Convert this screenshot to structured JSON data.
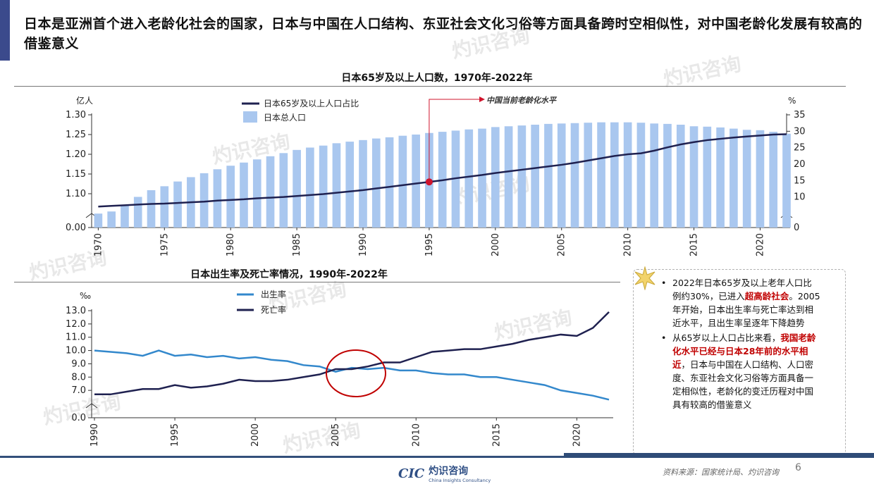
{
  "title": "日本是亚洲首个进入老龄化社会的国家，日本与中国在人口结构、东亚社会文化习俗等方面具备跨时空相似性，对中国老龄化发展有较高的借鉴意义",
  "chart1": {
    "title": "日本65岁及以上人口数，1970年-2022年",
    "left_unit": "亿人",
    "right_unit": "%",
    "legend_line": "日本65岁及以上人口占比",
    "legend_bar": "日本总人口",
    "annotation": "中国当前老龄化水平"
  },
  "chart2": {
    "title": "日本出生率及死亡率情况，1990年-2022年",
    "unit": "‰",
    "legend_birth": "出生率",
    "legend_death": "死亡率"
  },
  "notes": [
    {
      "pre": "2022年日本65岁及以上老年人口比例约30%，已进入",
      "hl": "超高龄社会",
      "post": "。2005年开始，日本出生率与死亡率达到相近水平，且出生率呈逐年下降趋势"
    },
    {
      "pre": "从65岁以上人口占比来看，",
      "hl": "我国老龄化水平已经与日本28年前的水平相近",
      "post": "，日本与中国在人口结构、人口密度、东亚社会文化习俗等方面具备一定相似性，老龄化的变迁历程对中国具有较高的借鉴意义"
    }
  ],
  "footer": {
    "source": "资料来源：国家统计局、灼识咨询",
    "page": "6",
    "logo_cic": "CIC",
    "logo_cn": "灼识咨询",
    "logo_en": "China Insights Consultancy"
  },
  "watermark": {
    "cn": "灼识咨询",
    "en": "China Insights Consultancy",
    "cic": "CIC"
  },
  "colors": {
    "bar": "#a9c7ef",
    "line_dark": "#1f2150",
    "line_blue": "#3388cc",
    "marker": "#d0142c",
    "accent": "#3b4a8c"
  },
  "chart_data": [
    {
      "type": "bar",
      "title": "日本65岁及以上人口数，1970年-2022年",
      "x": [
        1970,
        1971,
        1972,
        1973,
        1974,
        1975,
        1976,
        1977,
        1978,
        1979,
        1980,
        1981,
        1982,
        1983,
        1984,
        1985,
        1986,
        1987,
        1988,
        1989,
        1990,
        1991,
        1992,
        1993,
        1994,
        1995,
        1996,
        1997,
        1998,
        1999,
        2000,
        2001,
        2002,
        2003,
        2004,
        2005,
        2006,
        2007,
        2008,
        2009,
        2010,
        2011,
        2012,
        2013,
        2014,
        2015,
        2016,
        2017,
        2018,
        2019,
        2020,
        2021,
        2022
      ],
      "xticks": [
        1970,
        1975,
        1980,
        1985,
        1990,
        1995,
        2000,
        2005,
        2010,
        2015,
        2020
      ],
      "series": [
        {
          "name": "日本总人口",
          "axis": "left",
          "values": [
            1.04,
            1.055,
            1.071,
            1.092,
            1.109,
            1.119,
            1.131,
            1.142,
            1.152,
            1.162,
            1.171,
            1.179,
            1.187,
            1.195,
            1.203,
            1.211,
            1.217,
            1.222,
            1.228,
            1.232,
            1.236,
            1.24,
            1.243,
            1.247,
            1.25,
            1.254,
            1.257,
            1.26,
            1.263,
            1.265,
            1.269,
            1.271,
            1.273,
            1.275,
            1.277,
            1.278,
            1.279,
            1.28,
            1.281,
            1.281,
            1.281,
            1.28,
            1.278,
            1.277,
            1.275,
            1.271,
            1.27,
            1.268,
            1.265,
            1.262,
            1.261,
            1.257,
            1.252
          ]
        },
        {
          "name": "日本65岁及以上人口占比",
          "axis": "right",
          "values": [
            7.1,
            7.3,
            7.5,
            7.7,
            7.9,
            8.0,
            8.2,
            8.4,
            8.6,
            8.9,
            9.1,
            9.3,
            9.6,
            9.8,
            10.0,
            10.3,
            10.6,
            10.9,
            11.3,
            11.7,
            12.1,
            12.6,
            13.1,
            13.6,
            14.1,
            14.6,
            15.1,
            15.7,
            16.2,
            16.7,
            17.3,
            17.8,
            18.3,
            18.8,
            19.3,
            19.8,
            20.4,
            21.1,
            21.8,
            22.5,
            23.0,
            23.3,
            24.1,
            25.1,
            26.0,
            26.7,
            27.3,
            27.7,
            28.1,
            28.4,
            28.7,
            29.0,
            29.1
          ]
        }
      ],
      "ylim_left": [
        0.0,
        1.3
      ],
      "yticks_left": [
        0.0,
        1.1,
        1.15,
        1.2,
        1.25,
        1.3
      ],
      "ylim_right": [
        0,
        35
      ],
      "yticks_right": [
        0,
        10,
        15,
        20,
        25,
        30,
        35
      ],
      "marker": {
        "x": 1995,
        "label": "中国当前老龄化水平"
      },
      "legend": "top-left"
    },
    {
      "type": "line",
      "title": "日本出生率及死亡率情况，1990年-2022年",
      "x": [
        1990,
        1991,
        1992,
        1993,
        1994,
        1995,
        1996,
        1997,
        1998,
        1999,
        2000,
        2001,
        2002,
        2003,
        2004,
        2005,
        2006,
        2007,
        2008,
        2009,
        2010,
        2011,
        2012,
        2013,
        2014,
        2015,
        2016,
        2017,
        2018,
        2019,
        2020,
        2021,
        2022
      ],
      "xticks": [
        1990,
        1995,
        2000,
        2005,
        2010,
        2015,
        2020
      ],
      "series": [
        {
          "name": "出生率",
          "values": [
            10.0,
            9.9,
            9.8,
            9.6,
            10.0,
            9.6,
            9.7,
            9.5,
            9.6,
            9.4,
            9.5,
            9.3,
            9.2,
            8.9,
            8.8,
            8.4,
            8.7,
            8.6,
            8.7,
            8.5,
            8.5,
            8.3,
            8.2,
            8.2,
            8.0,
            8.0,
            7.8,
            7.6,
            7.4,
            7.0,
            6.8,
            6.6,
            6.3
          ]
        },
        {
          "name": "死亡率",
          "values": [
            6.7,
            6.7,
            6.9,
            7.1,
            7.1,
            7.4,
            7.2,
            7.3,
            7.5,
            7.8,
            7.7,
            7.7,
            7.8,
            8.0,
            8.2,
            8.6,
            8.6,
            8.8,
            9.1,
            9.1,
            9.5,
            9.9,
            10.0,
            10.1,
            10.1,
            10.3,
            10.5,
            10.8,
            11.0,
            11.2,
            11.1,
            11.7,
            12.9
          ]
        }
      ],
      "ylim": [
        0.0,
        13.0
      ],
      "yticks": [
        0.0,
        7.0,
        8.0,
        9.0,
        10.0,
        11.0,
        12.0,
        13.0
      ],
      "legend": "top-left"
    }
  ]
}
